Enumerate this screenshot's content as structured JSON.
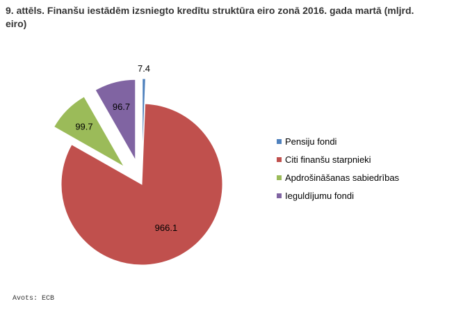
{
  "title": "9. attēls. Finanšu iestādēm izsniegto kredītu struktūra eiro zonā 2016. gada martā (mljrd. eiro)",
  "source": "Avots: ECB",
  "chart_data": {
    "type": "pie",
    "categories": [
      "Pensiju fondi",
      "Citi finanšu starpnieki",
      "Apdrošināšanas sabiedrības",
      "Ieguldījumu fondi"
    ],
    "values": [
      7.4,
      966.1,
      99.7,
      96.7
    ],
    "labels": [
      "7.4",
      "966.1",
      "99.7",
      "96.7"
    ],
    "colors": [
      "#4f81bd",
      "#c0504d",
      "#9bbb59",
      "#8064a2"
    ],
    "exploded": [
      true,
      false,
      true,
      true
    ],
    "legend_position": "right"
  }
}
